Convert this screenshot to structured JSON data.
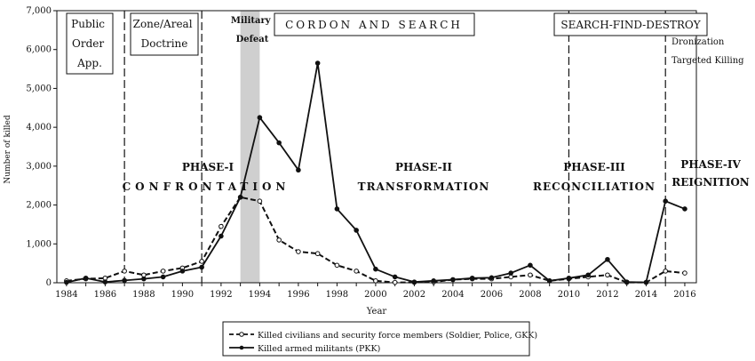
{
  "chart_data": {
    "type": "line",
    "xlabel": "Year",
    "ylabel": "Number of killed",
    "xlim": [
      1983.5,
      2016.6
    ],
    "ylim": [
      0,
      7000
    ],
    "x_ticks": [
      "1984",
      "1986",
      "1988",
      "1990",
      "1992",
      "1994",
      "1996",
      "1998",
      "2000",
      "2002",
      "2004",
      "2006",
      "2008",
      "2010",
      "2012",
      "2014",
      "2016"
    ],
    "y_ticks": [
      "0",
      "1,000",
      "2,000",
      "3,000",
      "4,000",
      "5,000",
      "6,000",
      "7,000"
    ],
    "grid": false,
    "legend_position": "bottom-center",
    "series": [
      {
        "name": "Killed civilians and security force members (Soldier, Police, GKK)",
        "style": "dashed",
        "marker": "open-circle",
        "x": [
          1984,
          1985,
          1986,
          1987,
          1988,
          1989,
          1990,
          1991,
          1992,
          1993,
          1994,
          1995,
          1996,
          1997,
          1998,
          1999,
          2000,
          2001,
          2002,
          2003,
          2004,
          2005,
          2006,
          2007,
          2008,
          2009,
          2010,
          2011,
          2012,
          2013,
          2014,
          2015,
          2016
        ],
        "y": [
          50,
          100,
          120,
          300,
          200,
          300,
          380,
          550,
          1450,
          2200,
          2100,
          1100,
          800,
          750,
          450,
          300,
          50,
          10,
          10,
          20,
          80,
          100,
          100,
          150,
          200,
          50,
          100,
          150,
          200,
          10,
          10,
          300,
          250
        ]
      },
      {
        "name": "Killed armed militants (PKK)",
        "style": "solid",
        "marker": "filled-circle",
        "x": [
          1984,
          1985,
          1986,
          1987,
          1988,
          1989,
          1990,
          1991,
          1992,
          1993,
          1994,
          1995,
          1996,
          1997,
          1998,
          1999,
          2000,
          2001,
          2002,
          2003,
          2004,
          2005,
          2006,
          2007,
          2008,
          2009,
          2010,
          2011,
          2012,
          2013,
          2014,
          2015,
          2016
        ],
        "y": [
          10,
          120,
          20,
          60,
          100,
          150,
          300,
          400,
          1200,
          2200,
          4250,
          3600,
          2900,
          5650,
          1900,
          1350,
          350,
          150,
          20,
          50,
          80,
          120,
          130,
          250,
          450,
          50,
          120,
          200,
          600,
          20,
          10,
          2100,
          1900
        ]
      }
    ],
    "shaded_regions": [
      {
        "from": 1993,
        "to": 1994,
        "label": "Military Defeat"
      }
    ],
    "phase_dividers": [
      1987,
      1991,
      2010,
      2015
    ],
    "annotations": {
      "boxed": [
        "Public Order App.",
        "Zone/Areal Doctrine",
        "CORDON AND SEARCH",
        "SEARCH-FIND-DESTROY"
      ],
      "side_notes": [
        "Dronization",
        "Targeted Killing"
      ],
      "phases": [
        {
          "heading": "PHASE-I",
          "sub": "CONFRONTATION"
        },
        {
          "heading": "PHASE-II",
          "sub": "TRANSFORMATION"
        },
        {
          "heading": "PHASE-III",
          "sub": "RECONCILIATION"
        },
        {
          "heading": "PHASE-IV",
          "sub": "REIGNITION"
        }
      ]
    }
  }
}
